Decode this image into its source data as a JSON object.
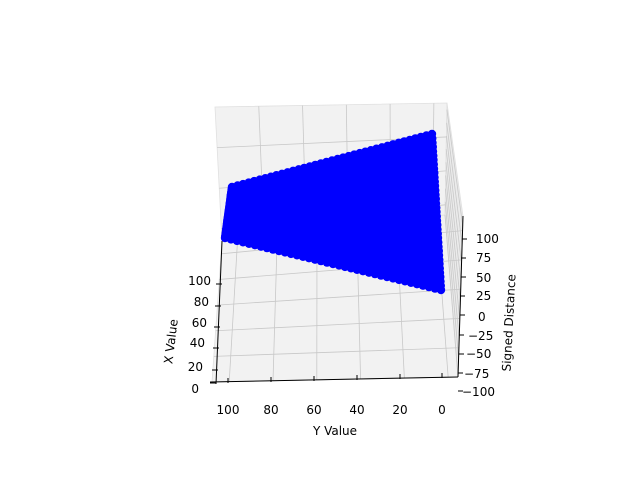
{
  "chart_data": {
    "type": "scatter",
    "projection": "3d",
    "title": "",
    "xlabel": "X Value",
    "ylabel": "Y Value",
    "zlabel": "Signed Distance",
    "xlim": [
      0,
      110
    ],
    "ylim": [
      0,
      110
    ],
    "zlim": [
      -100,
      120
    ],
    "x_ticks": [
      "0",
      "20",
      "40",
      "60",
      "80",
      "100"
    ],
    "y_ticks": [
      "100",
      "80",
      "60",
      "40",
      "20",
      "0"
    ],
    "z_ticks": [
      "−100",
      "−75",
      "−50",
      "−25",
      "0",
      "25",
      "50",
      "75",
      "100"
    ],
    "grid": true,
    "series": [
      {
        "color": "#0000ff",
        "marker": "o",
        "surface_corners": [
          {
            "x": 110,
            "y": 110,
            "z": 118
          },
          {
            "x": 0,
            "y": 110,
            "z": 118
          },
          {
            "x": 110,
            "y": 0,
            "z": 118
          },
          {
            "x": 0,
            "y": 0,
            "z": 18
          }
        ]
      }
    ]
  }
}
